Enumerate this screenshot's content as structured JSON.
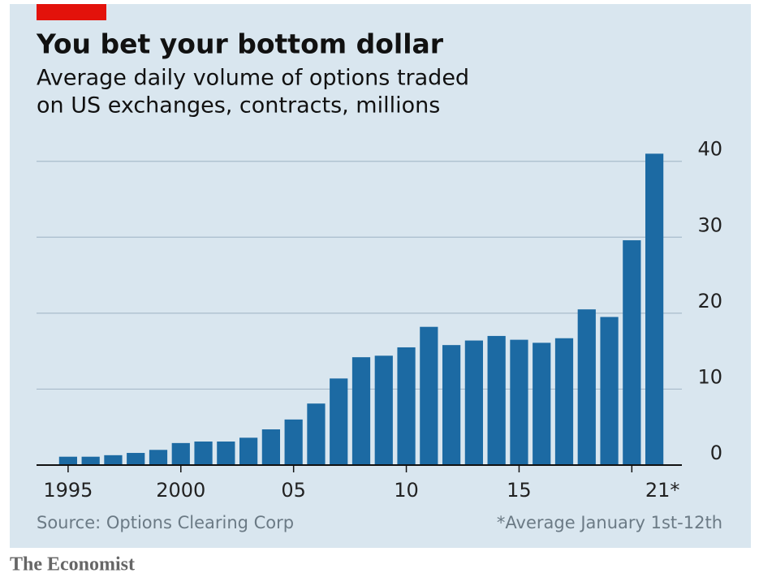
{
  "chart_data": {
    "type": "bar",
    "title": "You bet your bottom dollar",
    "subtitle": [
      "Average daily volume of options traded",
      "on US exchanges, contracts, millions"
    ],
    "categories": [
      "1995",
      null,
      null,
      null,
      null,
      "2000",
      null,
      null,
      null,
      null,
      "05",
      null,
      null,
      null,
      null,
      "10",
      null,
      null,
      null,
      null,
      "15",
      null,
      null,
      null,
      null,
      null,
      "21*"
    ],
    "values": [
      1.1,
      1.1,
      1.3,
      1.6,
      2.0,
      2.9,
      3.1,
      3.1,
      3.6,
      4.7,
      6.0,
      8.1,
      11.4,
      14.2,
      14.4,
      15.5,
      18.2,
      15.8,
      16.4,
      17.0,
      16.5,
      16.1,
      16.7,
      20.5,
      19.5,
      29.6,
      41.0
    ],
    "color": "#1c6aa3",
    "ylim": [
      0,
      42
    ],
    "yticks": [
      0,
      10,
      20,
      30,
      40
    ],
    "grid": true,
    "source": "Source: Options Clearing Corp",
    "note": "*Average January 1st-12th",
    "publisher": "The Economist"
  }
}
